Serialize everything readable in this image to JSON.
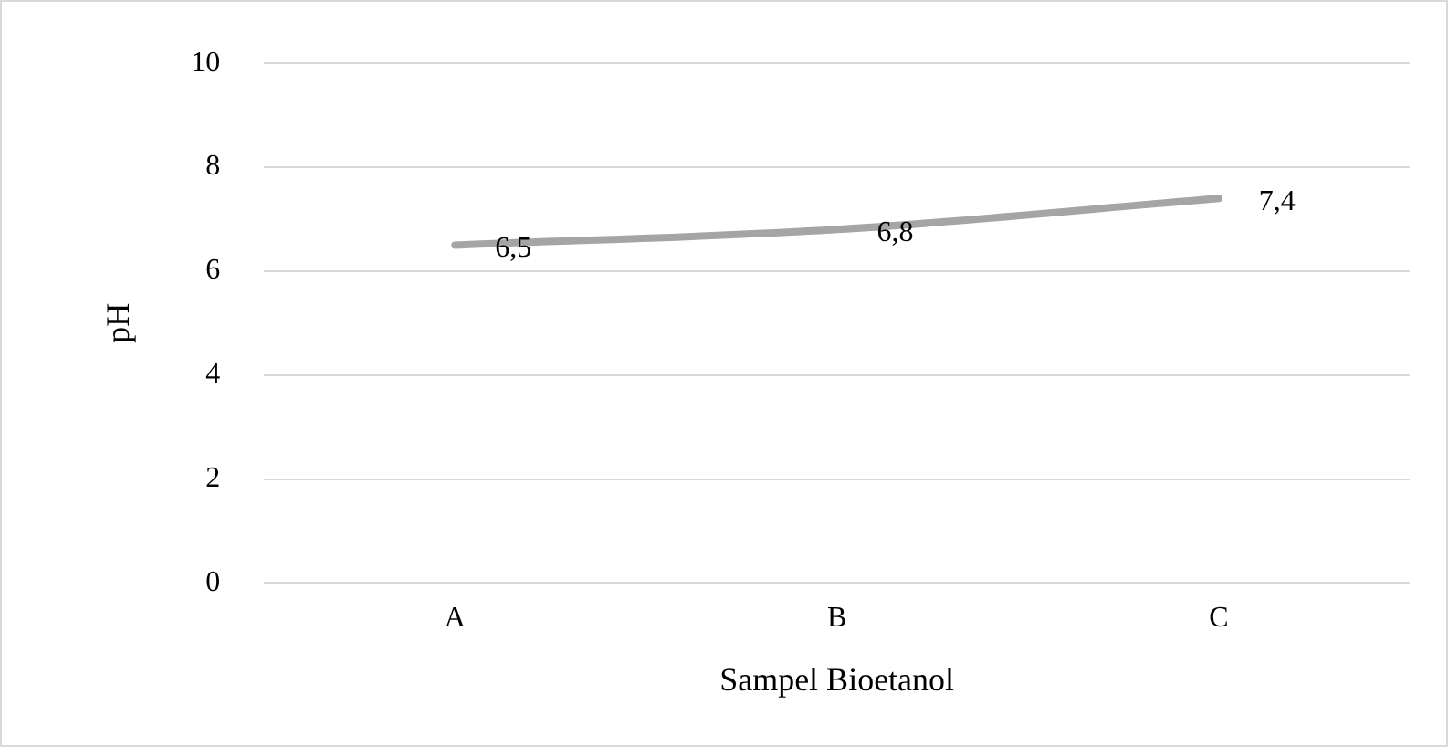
{
  "chart_data": {
    "type": "line",
    "xlabel": "Sampel Bioetanol",
    "ylabel": "pH",
    "categories": [
      "A",
      "B",
      "C"
    ],
    "series": [
      {
        "color": "#a5a5a5",
        "values": [
          6.5,
          6.8,
          7.4
        ],
        "value_labels": [
          "6,5",
          "6,8",
          "7,4"
        ]
      }
    ],
    "ylim": [
      0,
      10
    ],
    "yticks": [
      0,
      2,
      4,
      6,
      8,
      10
    ],
    "grid": "y",
    "legend": false,
    "marker": "none",
    "line_style": "solid"
  }
}
